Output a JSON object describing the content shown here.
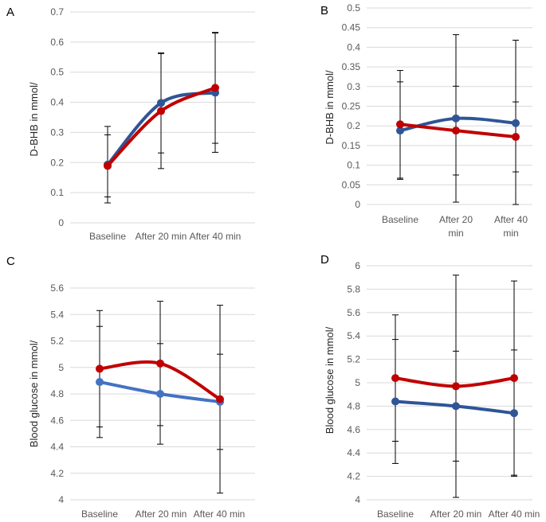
{
  "chart_data": [
    {
      "type": "line",
      "panel_letter": "A",
      "categories": [
        "Baseline",
        "After 20 min",
        "After 40 min"
      ],
      "ylabel": "D-BHB in mmol/",
      "ylim": [
        0,
        0.7
      ],
      "yticks": [
        0,
        0.1,
        0.2,
        0.3,
        0.4,
        0.5,
        0.6,
        0.7
      ],
      "grid": "horizontal",
      "series": [
        {
          "color": "#2f5597",
          "values": [
            0.193,
            0.398,
            0.432
          ],
          "error": [
            0.127,
            0.166,
            0.198
          ]
        },
        {
          "color": "#c00000",
          "values": [
            0.189,
            0.371,
            0.448
          ],
          "error": [
            0.103,
            0.191,
            0.184
          ]
        }
      ]
    },
    {
      "type": "line",
      "panel_letter": "B",
      "categories": [
        "Baseline",
        "After 20 min",
        "After 40 min"
      ],
      "ylabel": "D-BHB in mmol/",
      "ylim": [
        0,
        0.5
      ],
      "yticks": [
        0,
        0.05,
        0.1,
        0.15,
        0.2,
        0.25,
        0.3,
        0.35,
        0.4,
        0.45,
        0.5
      ],
      "grid": "horizontal",
      "series": [
        {
          "color": "#2f5597",
          "values": [
            0.188,
            0.219,
            0.207
          ],
          "error": [
            0.124,
            0.213,
            0.211
          ]
        },
        {
          "color": "#c00000",
          "values": [
            0.204,
            0.188,
            0.172
          ],
          "error": [
            0.137,
            0.113,
            0.089
          ]
        }
      ]
    },
    {
      "type": "line",
      "panel_letter": "C",
      "categories": [
        "Baseline",
        "After 20 min",
        "After 40 min"
      ],
      "ylabel": "Blood glucose in mmol/",
      "ylim": [
        4,
        5.6
      ],
      "yticks": [
        4,
        4.2,
        4.4,
        4.6,
        4.8,
        5,
        5.2,
        5.4,
        5.6
      ],
      "grid": "horizontal",
      "series": [
        {
          "color": "#4472c4",
          "values": [
            4.89,
            4.8,
            4.74
          ],
          "error": [
            0.42,
            0.38,
            0.36
          ]
        },
        {
          "color": "#c00000",
          "values": [
            4.99,
            5.03,
            4.76
          ],
          "error": [
            0.44,
            0.47,
            0.71
          ]
        }
      ]
    },
    {
      "type": "line",
      "panel_letter": "D",
      "categories": [
        "Baseline",
        "After 20 min",
        "After 40 min"
      ],
      "ylabel": "Blood glucose in mmol/",
      "ylim": [
        4,
        6
      ],
      "yticks": [
        4,
        4.2,
        4.4,
        4.6,
        4.8,
        5,
        5.2,
        5.4,
        5.6,
        5.8,
        6
      ],
      "grid": "horizontal",
      "series": [
        {
          "color": "#2f5597",
          "values": [
            4.84,
            4.8,
            4.74
          ],
          "error": [
            0.53,
            0.47,
            0.54
          ]
        },
        {
          "color": "#c00000",
          "values": [
            5.04,
            4.97,
            5.04
          ],
          "error": [
            0.54,
            0.95,
            0.83
          ]
        }
      ]
    }
  ]
}
